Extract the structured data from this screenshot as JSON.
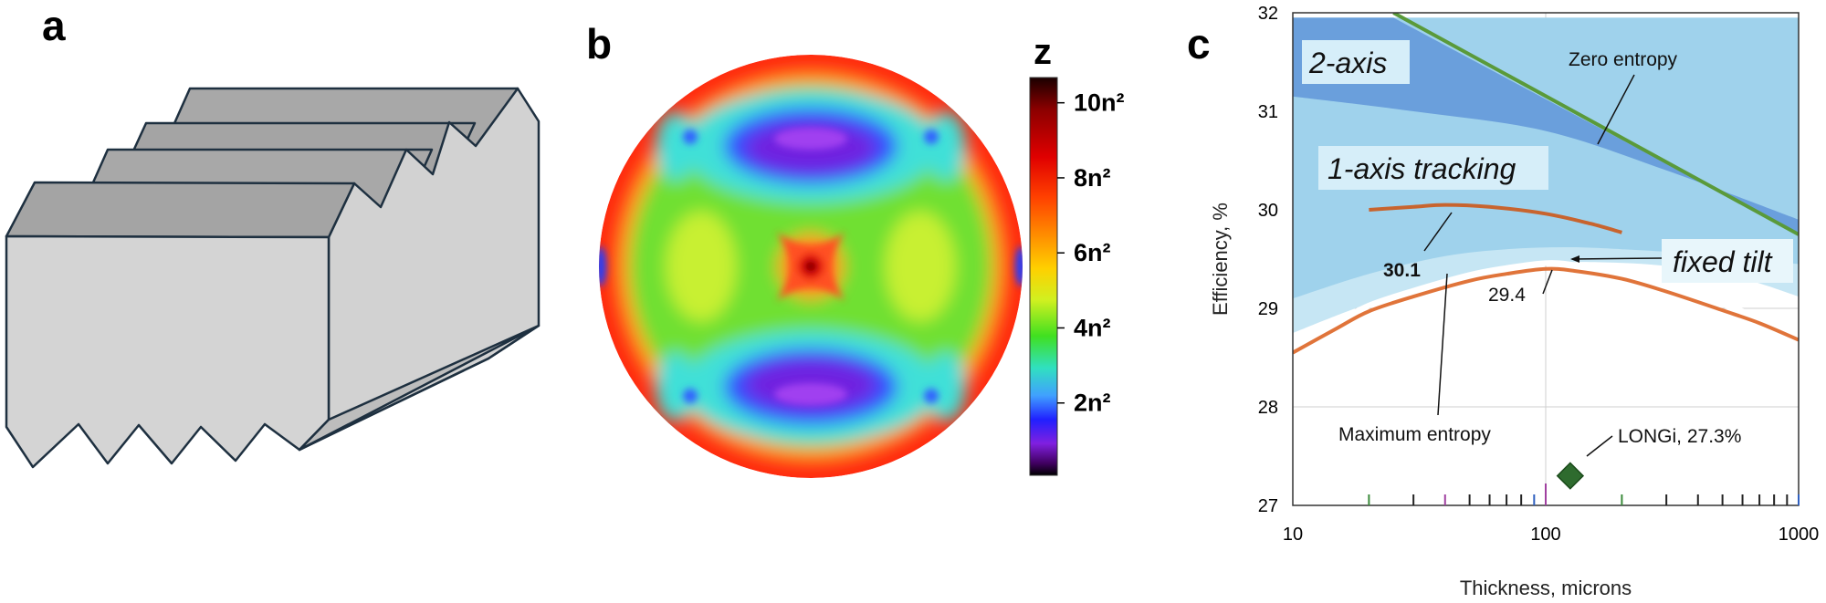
{
  "panels": {
    "a": {
      "letter": "a"
    },
    "b": {
      "letter": "b",
      "colorbar": {
        "title": "z",
        "ticks": [
          "10n²",
          "8n²",
          "6n²",
          "4n²",
          "2n²"
        ],
        "colors": [
          "#1a0000",
          "#8b0000",
          "#e00000",
          "#ff4000",
          "#ff9000",
          "#ffd000",
          "#d0f020",
          "#40e020",
          "#30e0c0",
          "#40a0ff",
          "#2020ff",
          "#8020e0",
          "#400060",
          "#000000"
        ]
      }
    },
    "c": {
      "letter": "c",
      "region_labels": {
        "two_axis": "2-axis",
        "one_axis": "1-axis tracking",
        "fixed_tilt": "fixed tilt"
      },
      "annotations": {
        "zero_entropy": "Zero entropy",
        "max_entropy": "Maximum entropy",
        "value_301": "30.1",
        "value_294": "29.4",
        "longi": "LONGi, 27.3%"
      },
      "colors": {
        "two_axis_fill": "#6a9fdc",
        "one_axis_fill": "#9fd2ec",
        "fixed_fill": "#c6e6f4",
        "orange": "#e0743a",
        "green_line": "#5a9a3a",
        "marker": "#2e6b2e"
      }
    }
  },
  "chart_data": {
    "type": "line",
    "xlabel": "Thickness, microns",
    "ylabel": "Efficiency, %",
    "x_scale": "log",
    "xlim": [
      10,
      1000
    ],
    "ylim": [
      27,
      32
    ],
    "x_ticks": [
      "10",
      "100",
      "1000"
    ],
    "y_ticks": [
      "27",
      "28",
      "29",
      "30",
      "31",
      "32"
    ],
    "grid": true,
    "series": [
      {
        "name": "Zero entropy",
        "x": [
          25,
          1000
        ],
        "y": [
          32.0,
          29.75
        ]
      },
      {
        "name": "Maximum entropy",
        "x": [
          10,
          15,
          20,
          30,
          50,
          70,
          100,
          130,
          200,
          300,
          500,
          700,
          1000
        ],
        "y": [
          28.55,
          28.8,
          28.97,
          29.12,
          29.28,
          29.35,
          29.4,
          29.38,
          29.3,
          29.17,
          28.98,
          28.85,
          28.68
        ]
      },
      {
        "name": "1-axis tracking",
        "x": [
          20,
          30,
          40,
          60,
          100,
          150,
          200
        ],
        "y": [
          30.0,
          30.03,
          30.05,
          30.03,
          29.96,
          29.86,
          29.77
        ]
      }
    ],
    "regions": {
      "two_axis_top": {
        "x": [
          10,
          25,
          1000
        ],
        "y": [
          31.95,
          31.95,
          29.75
        ]
      },
      "two_axis_bottom": {
        "x": [
          10,
          30,
          100,
          300,
          1000
        ],
        "y": [
          31.15,
          31.0,
          30.8,
          30.4,
          29.9
        ]
      },
      "one_axis_bottom": {
        "x": [
          10,
          20,
          40,
          70,
          120,
          200,
          400,
          1000
        ],
        "y": [
          29.1,
          29.35,
          29.53,
          29.6,
          29.62,
          29.6,
          29.55,
          29.45
        ]
      },
      "fixed_bottom": {
        "x": [
          10,
          20,
          40,
          70,
          100,
          150,
          300,
          600,
          1000
        ],
        "y": [
          28.75,
          29.05,
          29.28,
          29.4,
          29.45,
          29.47,
          29.43,
          29.3,
          29.12
        ]
      }
    },
    "points": [
      {
        "label": "LONGi, 27.3%",
        "x": 125,
        "y": 27.3
      }
    ]
  }
}
